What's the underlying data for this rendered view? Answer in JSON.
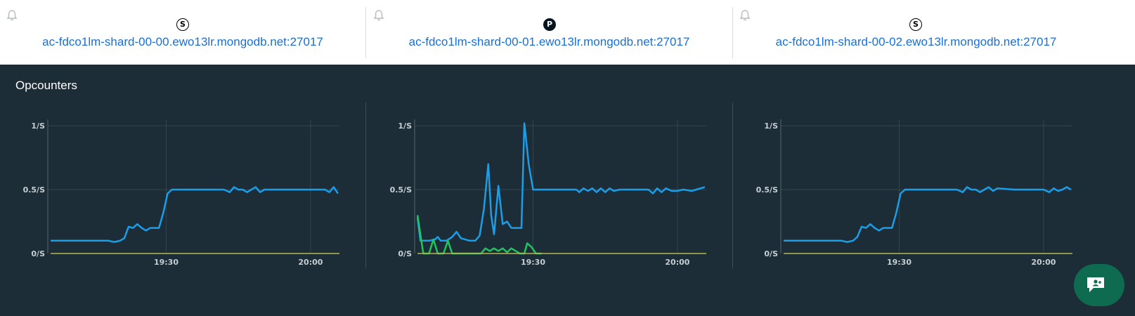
{
  "hosts": [
    {
      "badge": "S",
      "role": "secondary",
      "name": "ac-fdco1lm-shard-00-00.ewo13lr.mongodb.net:27017"
    },
    {
      "badge": "P",
      "role": "primary",
      "name": "ac-fdco1lm-shard-00-01.ewo13lr.mongodb.net:27017"
    },
    {
      "badge": "S",
      "role": "secondary",
      "name": "ac-fdco1lm-shard-00-02.ewo13lr.mongodb.net:27017"
    }
  ],
  "section": {
    "title": "Opcounters"
  },
  "icons": {
    "alert": "bell-icon",
    "chat": "chat-icon"
  },
  "colors": {
    "query_series": "#1a9ee8",
    "insert_series": "#21c55d",
    "baseline_series": "#b5b84a",
    "link": "#1a6fd6",
    "panel_bg": "#1c2d38"
  },
  "chart_data": [
    {
      "type": "line",
      "yticks": [
        "0/S",
        "0.5/S",
        "1/S"
      ],
      "xticks": [
        "19:30",
        "20:00"
      ],
      "ylim": [
        0,
        1.05
      ],
      "xlim": [
        19.09,
        20.1
      ],
      "series": [
        {
          "values": [
            [
              19.1,
              0.1
            ],
            [
              19.22,
              0.1
            ],
            [
              19.3,
              0.1
            ],
            [
              19.32,
              0.09
            ],
            [
              19.34,
              0.1
            ],
            [
              19.355,
              0.12
            ],
            [
              19.37,
              0.21
            ],
            [
              19.385,
              0.2
            ],
            [
              19.4,
              0.23
            ],
            [
              19.415,
              0.2
            ],
            [
              19.43,
              0.18
            ],
            [
              19.445,
              0.2
            ],
            [
              19.46,
              0.2
            ],
            [
              19.475,
              0.2
            ],
            [
              19.49,
              0.32
            ],
            [
              19.505,
              0.47
            ],
            [
              19.52,
              0.5
            ],
            [
              19.53,
              0.5
            ],
            [
              19.6,
              0.5
            ],
            [
              19.7,
              0.5
            ],
            [
              19.72,
              0.48
            ],
            [
              19.735,
              0.52
            ],
            [
              19.75,
              0.5
            ],
            [
              19.765,
              0.5
            ],
            [
              19.78,
              0.48
            ],
            [
              19.795,
              0.5
            ],
            [
              19.81,
              0.52
            ],
            [
              19.825,
              0.48
            ],
            [
              19.84,
              0.5
            ],
            [
              19.9,
              0.5
            ],
            [
              20.0,
              0.5
            ],
            [
              20.05,
              0.5
            ],
            [
              20.065,
              0.48
            ],
            [
              20.08,
              0.52
            ],
            [
              20.095,
              0.47
            ]
          ]
        },
        {
          "values": [
            [
              19.1,
              0.0
            ],
            [
              20.1,
              0.0
            ]
          ]
        }
      ]
    },
    {
      "type": "line",
      "yticks": [
        "0/S",
        "0.5/S",
        "1/S"
      ],
      "xticks": [
        "19:30",
        "20:00"
      ],
      "ylim": [
        0,
        1.05
      ],
      "xlim": [
        19.09,
        20.1
      ],
      "series": [
        {
          "values": [
            [
              19.1,
              0.28
            ],
            [
              19.11,
              0.1
            ],
            [
              19.14,
              0.1
            ],
            [
              19.16,
              0.11
            ],
            [
              19.17,
              0.13
            ],
            [
              19.18,
              0.1
            ],
            [
              19.2,
              0.1
            ],
            [
              19.22,
              0.13
            ],
            [
              19.235,
              0.17
            ],
            [
              19.25,
              0.12
            ],
            [
              19.28,
              0.1
            ],
            [
              19.3,
              0.1
            ],
            [
              19.315,
              0.14
            ],
            [
              19.33,
              0.35
            ],
            [
              19.345,
              0.7
            ],
            [
              19.355,
              0.3
            ],
            [
              19.365,
              0.15
            ],
            [
              19.38,
              0.53
            ],
            [
              19.395,
              0.23
            ],
            [
              19.41,
              0.25
            ],
            [
              19.425,
              0.2
            ],
            [
              19.46,
              0.2
            ],
            [
              19.47,
              1.02
            ],
            [
              19.485,
              0.7
            ],
            [
              19.5,
              0.5
            ],
            [
              19.55,
              0.5
            ],
            [
              19.6,
              0.5
            ],
            [
              19.65,
              0.5
            ],
            [
              19.66,
              0.48
            ],
            [
              19.675,
              0.51
            ],
            [
              19.69,
              0.49
            ],
            [
              19.705,
              0.51
            ],
            [
              19.72,
              0.48
            ],
            [
              19.735,
              0.51
            ],
            [
              19.75,
              0.48
            ],
            [
              19.765,
              0.51
            ],
            [
              19.78,
              0.49
            ],
            [
              19.8,
              0.5
            ],
            [
              19.85,
              0.5
            ],
            [
              19.9,
              0.5
            ],
            [
              19.915,
              0.47
            ],
            [
              19.93,
              0.51
            ],
            [
              19.945,
              0.48
            ],
            [
              19.96,
              0.51
            ],
            [
              19.98,
              0.49
            ],
            [
              20.0,
              0.49
            ],
            [
              20.02,
              0.5
            ],
            [
              20.05,
              0.49
            ],
            [
              20.065,
              0.5
            ],
            [
              20.095,
              0.52
            ]
          ]
        },
        {
          "values": [
            [
              19.1,
              0.3
            ],
            [
              19.12,
              0.0
            ],
            [
              19.14,
              0.0
            ],
            [
              19.155,
              0.11
            ],
            [
              19.17,
              0.0
            ],
            [
              19.19,
              0.0
            ],
            [
              19.205,
              0.1
            ],
            [
              19.22,
              0.0
            ],
            [
              19.28,
              0.0
            ],
            [
              19.3,
              0.0
            ],
            [
              19.32,
              0.0
            ],
            [
              19.335,
              0.04
            ],
            [
              19.35,
              0.02
            ],
            [
              19.365,
              0.04
            ],
            [
              19.38,
              0.02
            ],
            [
              19.395,
              0.04
            ],
            [
              19.41,
              0.01
            ],
            [
              19.425,
              0.04
            ],
            [
              19.44,
              0.02
            ],
            [
              19.455,
              0.0
            ],
            [
              19.47,
              0.0
            ],
            [
              19.48,
              0.08
            ],
            [
              19.495,
              0.05
            ],
            [
              19.51,
              0.0
            ],
            [
              19.53,
              0.0
            ]
          ]
        },
        {
          "values": [
            [
              19.1,
              0.0
            ],
            [
              20.1,
              0.0
            ]
          ]
        }
      ]
    },
    {
      "type": "line",
      "yticks": [
        "0/S",
        "0.5/S",
        "1/S"
      ],
      "xticks": [
        "19:30",
        "20:00"
      ],
      "ylim": [
        0,
        1.05
      ],
      "xlim": [
        19.09,
        20.1
      ],
      "series": [
        {
          "values": [
            [
              19.1,
              0.1
            ],
            [
              19.22,
              0.1
            ],
            [
              19.3,
              0.1
            ],
            [
              19.32,
              0.09
            ],
            [
              19.34,
              0.1
            ],
            [
              19.355,
              0.13
            ],
            [
              19.37,
              0.21
            ],
            [
              19.385,
              0.2
            ],
            [
              19.4,
              0.23
            ],
            [
              19.415,
              0.2
            ],
            [
              19.43,
              0.18
            ],
            [
              19.445,
              0.2
            ],
            [
              19.46,
              0.2
            ],
            [
              19.475,
              0.2
            ],
            [
              19.49,
              0.32
            ],
            [
              19.505,
              0.47
            ],
            [
              19.52,
              0.5
            ],
            [
              19.6,
              0.5
            ],
            [
              19.7,
              0.5
            ],
            [
              19.72,
              0.48
            ],
            [
              19.735,
              0.52
            ],
            [
              19.75,
              0.5
            ],
            [
              19.765,
              0.5
            ],
            [
              19.78,
              0.48
            ],
            [
              19.795,
              0.5
            ],
            [
              19.81,
              0.52
            ],
            [
              19.825,
              0.49
            ],
            [
              19.84,
              0.51
            ],
            [
              19.9,
              0.5
            ],
            [
              20.0,
              0.5
            ],
            [
              20.02,
              0.48
            ],
            [
              20.035,
              0.51
            ],
            [
              20.05,
              0.49
            ],
            [
              20.065,
              0.5
            ],
            [
              20.08,
              0.52
            ],
            [
              20.095,
              0.5
            ]
          ]
        },
        {
          "values": [
            [
              19.1,
              0.0
            ],
            [
              20.1,
              0.0
            ]
          ]
        }
      ]
    }
  ]
}
